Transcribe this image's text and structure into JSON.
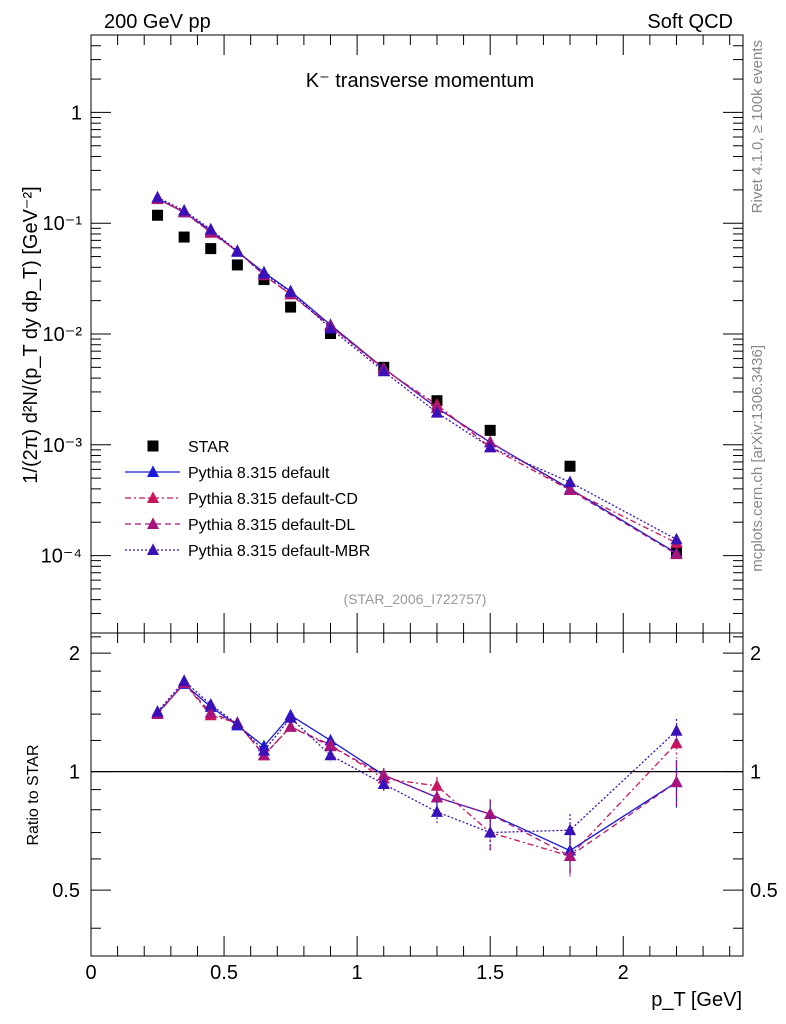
{
  "header": {
    "left": "200 GeV pp",
    "right": "Soft QCD"
  },
  "side": {
    "rivet": "Rivet 4.1.0, ≥ 100k events",
    "mcplots": "mcplots.cern.ch [arXiv:1306.3436]"
  },
  "chart_data": [
    {
      "type": "scatter",
      "title": "K⁻ transverse momentum",
      "analysis_label": "(STAR_2006_I722757)",
      "ylabel": "1/(2π)  d²N/(p_T dy dp_T) [GeV⁻²]",
      "yscale": "log",
      "xlim": [
        0,
        2.45
      ],
      "ylim": [
        2e-05,
        5
      ],
      "ytick_labels": [
        "10⁻⁴",
        "10⁻³",
        "10⁻²",
        "10⁻¹",
        "1"
      ],
      "legend_position": "lower-left",
      "x": [
        0.25,
        0.35,
        0.45,
        0.55,
        0.65,
        0.75,
        0.9,
        1.1,
        1.3,
        1.5,
        1.8,
        2.2
      ],
      "series": [
        {
          "name": "STAR",
          "color": "#000000",
          "marker": "square",
          "line": "none",
          "values": [
            0.118,
            0.075,
            0.059,
            0.042,
            0.031,
            0.0175,
            0.0101,
            0.005,
            0.0025,
            0.00135,
            0.00064,
            0.00011
          ]
        },
        {
          "name": "Pythia 8.315 default",
          "color": "#1a1ad8",
          "marker": "triangle",
          "line": "solid",
          "values": [
            0.167,
            0.125,
            0.086,
            0.055,
            0.036,
            0.0243,
            0.0121,
            0.0049,
            0.00215,
            0.00105,
            0.0004,
            0.000105
          ]
        },
        {
          "name": "Pythia 8.315 default-CD",
          "color": "#c8155c",
          "marker": "triangle",
          "line": "dashdot",
          "values": [
            0.165,
            0.126,
            0.082,
            0.056,
            0.034,
            0.0228,
            0.0118,
            0.0048,
            0.0023,
            0.00095,
            0.00039,
            0.00013
          ]
        },
        {
          "name": "Pythia 8.315 default-DL",
          "color": "#a8157a",
          "marker": "triangle",
          "line": "dashed",
          "values": [
            0.166,
            0.126,
            0.083,
            0.056,
            0.034,
            0.0228,
            0.0117,
            0.0049,
            0.00215,
            0.00106,
            0.00039,
            0.000103
          ]
        },
        {
          "name": "Pythia 8.315 default-MBR",
          "color": "#3a10b8",
          "marker": "triangle",
          "line": "dotted",
          "values": [
            0.171,
            0.13,
            0.088,
            0.056,
            0.035,
            0.024,
            0.0112,
            0.0046,
            0.00195,
            0.00095,
            0.00046,
            0.00014
          ]
        }
      ]
    },
    {
      "type": "line",
      "ylabel": "Ratio to STAR",
      "xlabel": "p_T [GeV]",
      "xlim": [
        0,
        2.45
      ],
      "ylim": [
        0.34,
        2.25
      ],
      "x_ticks": [
        0,
        0.5,
        1,
        1.5,
        2
      ],
      "y_ticks": [
        0.5,
        1,
        2
      ],
      "reference_line": 1,
      "x": [
        0.25,
        0.35,
        0.45,
        0.55,
        0.65,
        0.75,
        0.9,
        1.1,
        1.3,
        1.5,
        1.8,
        2.2
      ],
      "series": [
        {
          "name": "Pythia 8.315 default",
          "color": "#1a1ad8",
          "line": "solid",
          "values": [
            1.41,
            1.67,
            1.46,
            1.31,
            1.16,
            1.39,
            1.2,
            0.98,
            0.86,
            0.78,
            0.63,
            0.94
          ],
          "errors": [
            0.03,
            0.03,
            0.03,
            0.03,
            0.03,
            0.03,
            0.04,
            0.04,
            0.06,
            0.07,
            0.08,
            0.13
          ]
        },
        {
          "name": "Pythia 8.315 default-CD",
          "color": "#c8155c",
          "line": "dashdot",
          "values": [
            1.4,
            1.68,
            1.39,
            1.33,
            1.1,
            1.3,
            1.17,
            0.96,
            0.92,
            0.7,
            0.61,
            1.18
          ],
          "errors": [
            0.03,
            0.03,
            0.03,
            0.03,
            0.03,
            0.03,
            0.04,
            0.04,
            0.05,
            0.07,
            0.07,
            0.1
          ]
        },
        {
          "name": "Pythia 8.315 default-DL",
          "color": "#a8157a",
          "line": "dashed",
          "values": [
            1.4,
            1.68,
            1.41,
            1.33,
            1.1,
            1.3,
            1.16,
            0.98,
            0.86,
            0.78,
            0.61,
            0.94
          ],
          "errors": [
            0.03,
            0.03,
            0.03,
            0.03,
            0.03,
            0.03,
            0.04,
            0.04,
            0.05,
            0.07,
            0.07,
            0.12
          ]
        },
        {
          "name": "Pythia 8.315 default-MBR",
          "color": "#3a10b8",
          "line": "dotted",
          "values": [
            1.42,
            1.7,
            1.48,
            1.32,
            1.13,
            1.37,
            1.1,
            0.93,
            0.79,
            0.7,
            0.71,
            1.27
          ],
          "errors": [
            0.03,
            0.03,
            0.03,
            0.03,
            0.03,
            0.03,
            0.04,
            0.04,
            0.05,
            0.07,
            0.07,
            0.09
          ]
        }
      ]
    }
  ]
}
